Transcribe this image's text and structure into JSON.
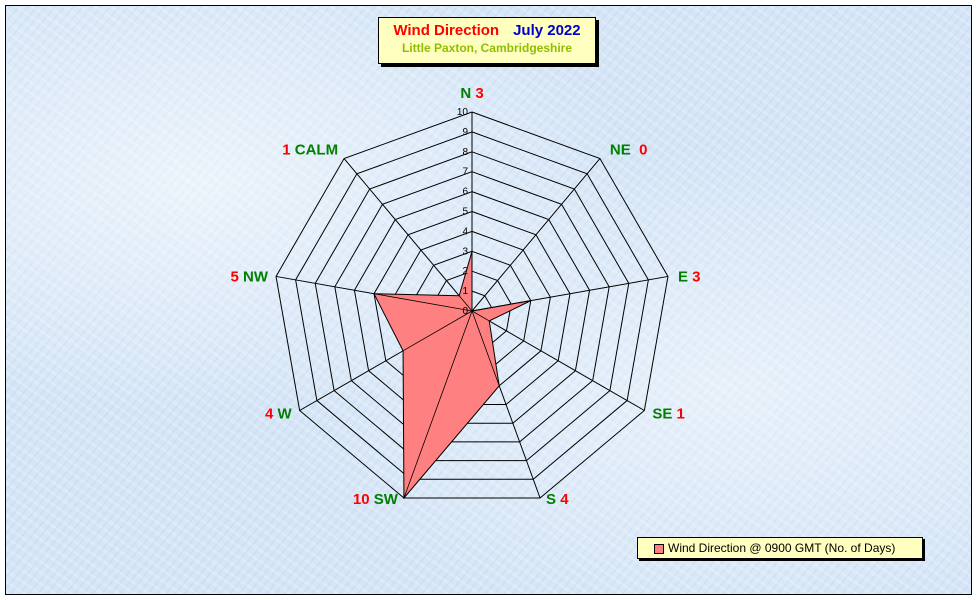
{
  "title": {
    "main": "Wind Direction",
    "date": "July 2022",
    "subtitle": "Little Paxton, Cambridgeshire"
  },
  "legend": {
    "label": "Wind Direction @ 0900 GMT (No. of Days)"
  },
  "colors": {
    "fill": "#ff8080",
    "label": "#008000",
    "count": "#ff0000",
    "grid": "#000000"
  },
  "chart_data": {
    "type": "radar",
    "categories": [
      "N",
      "NE",
      "E",
      "SE",
      "S",
      "SW",
      "W",
      "NW",
      "CALM"
    ],
    "series": [
      {
        "name": "Wind Direction @ 0900 GMT (No. of Days)",
        "values": [
          3,
          0,
          3,
          1,
          4,
          10,
          4,
          5,
          1
        ]
      }
    ],
    "count_labels": [
      "3",
      "0",
      "3",
      "1",
      "4",
      "10",
      "4",
      "5",
      "1"
    ],
    "radial_ticks": [
      "0",
      "1",
      "2",
      "3",
      "4",
      "5",
      "6",
      "7",
      "8",
      "9",
      "10"
    ],
    "rlim": [
      0,
      10
    ],
    "grid": true,
    "legend_position": "bottom-right"
  }
}
